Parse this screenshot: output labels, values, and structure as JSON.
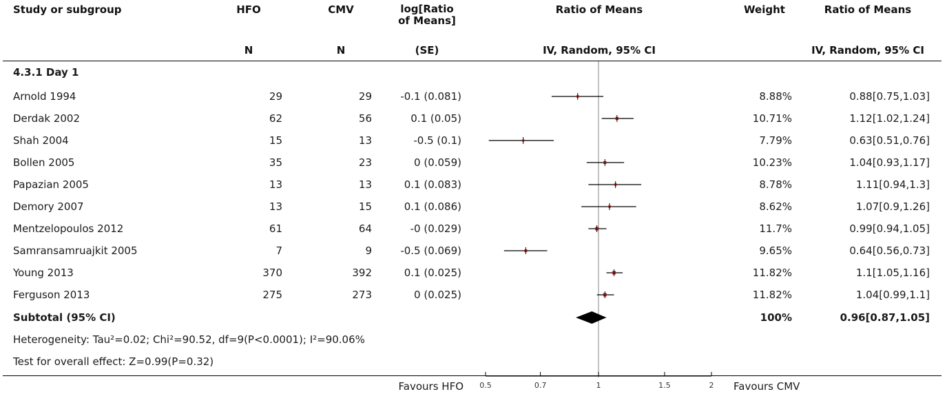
{
  "header": {
    "study": "Study or subgroup",
    "hfo": "HFO",
    "cmv": "CMV",
    "logratio_line1": "log[Ratio",
    "logratio_line2": "of Means]",
    "ratio_means": "Ratio of Means",
    "weight": "Weight",
    "ratio_means2": "Ratio of Means",
    "hfo_n": "N",
    "cmv_n": "N",
    "se": "(SE)",
    "ci_method": "IV, Random, 95% CI",
    "ci_method2": "IV, Random, 95% CI"
  },
  "subgroup_title": "4.3.1 Day 1",
  "studies": [
    {
      "name": "Arnold 1994",
      "hfo": "29",
      "cmv": "29",
      "logratio": "-0.1 (0.081)",
      "weight": "8.88%",
      "ci": "0.88[0.75,1.03]"
    },
    {
      "name": "Derdak 2002",
      "hfo": "62",
      "cmv": "56",
      "logratio": "0.1 (0.05)",
      "weight": "10.71%",
      "ci": "1.12[1.02,1.24]"
    },
    {
      "name": "Shah 2004",
      "hfo": "15",
      "cmv": "13",
      "logratio": "-0.5 (0.1)",
      "weight": "7.79%",
      "ci": "0.63[0.51,0.76]"
    },
    {
      "name": "Bollen 2005",
      "hfo": "35",
      "cmv": "23",
      "logratio": "0 (0.059)",
      "weight": "10.23%",
      "ci": "1.04[0.93,1.17]"
    },
    {
      "name": "Papazian 2005",
      "hfo": "13",
      "cmv": "13",
      "logratio": "0.1 (0.083)",
      "weight": "8.78%",
      "ci": "1.11[0.94,1.3]"
    },
    {
      "name": "Demory 2007",
      "hfo": "13",
      "cmv": "15",
      "logratio": "0.1 (0.086)",
      "weight": "8.62%",
      "ci": "1.07[0.9,1.26]"
    },
    {
      "name": "Mentzelopoulos 2012",
      "hfo": "61",
      "cmv": "64",
      "logratio": "-0 (0.029)",
      "weight": "11.7%",
      "ci": "0.99[0.94,1.05]"
    },
    {
      "name": "Samransamruajkit 2005",
      "hfo": "7",
      "cmv": "9",
      "logratio": "-0.5 (0.069)",
      "weight": "9.65%",
      "ci": "0.64[0.56,0.73]"
    },
    {
      "name": "Young 2013",
      "hfo": "370",
      "cmv": "392",
      "logratio": "0.1 (0.025)",
      "weight": "11.82%",
      "ci": "1.1[1.05,1.16]"
    },
    {
      "name": "Ferguson 2013",
      "hfo": "275",
      "cmv": "273",
      "logratio": "0 (0.025)",
      "weight": "11.82%",
      "ci": "1.04[0.99,1.1]"
    }
  ],
  "subtotal": {
    "label": "Subtotal (95% CI)",
    "weight": "100%",
    "ci": "0.96[0.87,1.05]"
  },
  "heterogeneity": "Heterogeneity: Tau²=0.02; Chi²=90.52, df=9(P<0.0001); I²=90.06%",
  "overall_effect": "Test for overall effect: Z=0.99(P=0.32)",
  "favours_left": "Favours HFO",
  "favours_right": "Favours CMV",
  "chart_data": {
    "type": "forest",
    "x_scale": "log",
    "xlim": [
      0.5,
      2
    ],
    "ticks": [
      0.5,
      0.7,
      1,
      1.5,
      2
    ],
    "tick_labels": [
      "0.5",
      "0.7",
      "1",
      "1.5",
      "2"
    ],
    "null_line": 1,
    "points": [
      {
        "est": 0.88,
        "lo": 0.75,
        "hi": 1.03,
        "weight": 8.88
      },
      {
        "est": 1.12,
        "lo": 1.02,
        "hi": 1.24,
        "weight": 10.71
      },
      {
        "est": 0.63,
        "lo": 0.51,
        "hi": 0.76,
        "weight": 7.79
      },
      {
        "est": 1.04,
        "lo": 0.93,
        "hi": 1.17,
        "weight": 10.23
      },
      {
        "est": 1.11,
        "lo": 0.94,
        "hi": 1.3,
        "weight": 8.78
      },
      {
        "est": 1.07,
        "lo": 0.9,
        "hi": 1.26,
        "weight": 8.62
      },
      {
        "est": 0.99,
        "lo": 0.94,
        "hi": 1.05,
        "weight": 11.7
      },
      {
        "est": 0.64,
        "lo": 0.56,
        "hi": 0.73,
        "weight": 9.65
      },
      {
        "est": 1.1,
        "lo": 1.05,
        "hi": 1.16,
        "weight": 11.82
      },
      {
        "est": 1.04,
        "lo": 0.99,
        "hi": 1.1,
        "weight": 11.82
      }
    ],
    "summary": {
      "est": 0.96,
      "lo": 0.87,
      "hi": 1.05
    },
    "marker_color": "#b01c1c",
    "diamond_color": "#000000"
  }
}
